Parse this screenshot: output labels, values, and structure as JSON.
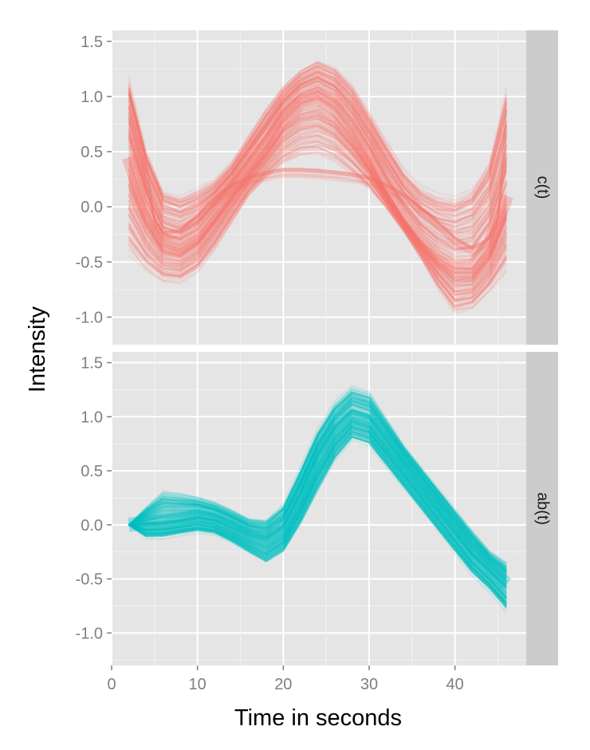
{
  "chart_data": {
    "type": "line",
    "xlabel": "Time in seconds",
    "ylabel": "Intensity",
    "xlim": [
      0,
      48.3
    ],
    "x_ticks": [
      0,
      10,
      20,
      30,
      40
    ],
    "x_tick_labels": [
      "0",
      "10",
      "20",
      "30",
      "40"
    ],
    "grid": true,
    "legend": "none",
    "panels": [
      {
        "strip_label": "c(t)",
        "color": "#F8766D",
        "ylim": [
          -1.25,
          1.6
        ],
        "y_ticks": [
          1.5,
          1.0,
          0.5,
          0.0,
          -0.5,
          -1.0
        ],
        "y_tick_labels": [
          "1.5",
          "1.0",
          "0.5",
          "0.0",
          "-0.5",
          "-1.0"
        ],
        "time": [
          2,
          4,
          6,
          8,
          10,
          12,
          14,
          16,
          18,
          20,
          22,
          24,
          26,
          28,
          30,
          32,
          34,
          36,
          38,
          40,
          42,
          44,
          46
        ],
        "mean_curve": [
          0.45,
          0.0,
          -0.3,
          -0.35,
          -0.25,
          -0.05,
          0.15,
          0.35,
          0.55,
          0.8,
          0.95,
          1.0,
          0.9,
          0.7,
          0.45,
          0.15,
          -0.1,
          -0.3,
          -0.45,
          -0.55,
          -0.55,
          -0.35,
          0.1
        ],
        "band_low": [
          -0.6,
          -0.7,
          -0.75,
          -0.75,
          -0.65,
          -0.45,
          -0.2,
          0.05,
          0.2,
          0.3,
          0.35,
          0.35,
          0.3,
          0.2,
          0.1,
          -0.05,
          -0.25,
          -0.5,
          -0.8,
          -1.05,
          -1.0,
          -0.85,
          -0.7
        ],
        "band_high": [
          1.35,
          0.65,
          0.25,
          0.2,
          0.25,
          0.3,
          0.45,
          0.7,
          0.95,
          1.15,
          1.3,
          1.4,
          1.35,
          1.2,
          0.95,
          0.7,
          0.45,
          0.3,
          0.25,
          0.25,
          0.35,
          0.6,
          1.3
        ],
        "flat_cluster_value": 0.17,
        "flat_cluster_range": [
          5,
          45
        ]
      },
      {
        "strip_label": "ab(t)",
        "color": "#00BFC4",
        "ylim": [
          -1.3,
          1.6
        ],
        "y_ticks": [
          1.5,
          1.0,
          0.5,
          0.0,
          -0.5,
          -1.0
        ],
        "y_tick_labels": [
          "1.5",
          "1.0",
          "0.5",
          "0.0",
          "-0.5",
          "-1.0"
        ],
        "time": [
          2,
          4,
          6,
          8,
          10,
          12,
          14,
          16,
          18,
          20,
          22,
          24,
          26,
          28,
          30,
          32,
          34,
          36,
          38,
          40,
          42,
          44,
          46
        ],
        "mean_curve": [
          0.0,
          0.02,
          0.03,
          0.05,
          0.08,
          0.05,
          -0.02,
          -0.1,
          -0.15,
          -0.05,
          0.25,
          0.6,
          0.85,
          1.0,
          0.95,
          0.75,
          0.55,
          0.35,
          0.15,
          -0.05,
          -0.25,
          -0.4,
          -0.55
        ],
        "band_low": [
          0.0,
          -0.15,
          -0.15,
          -0.12,
          -0.1,
          -0.12,
          -0.2,
          -0.3,
          -0.4,
          -0.3,
          -0.05,
          0.25,
          0.55,
          0.75,
          0.7,
          0.5,
          0.3,
          0.1,
          -0.1,
          -0.3,
          -0.5,
          -0.65,
          -0.85
        ],
        "band_high": [
          0.0,
          0.2,
          0.38,
          0.35,
          0.3,
          0.25,
          0.18,
          0.1,
          0.1,
          0.25,
          0.6,
          0.95,
          1.2,
          1.35,
          1.3,
          1.05,
          0.8,
          0.6,
          0.4,
          0.2,
          0.0,
          -0.2,
          -0.3
        ]
      }
    ]
  }
}
